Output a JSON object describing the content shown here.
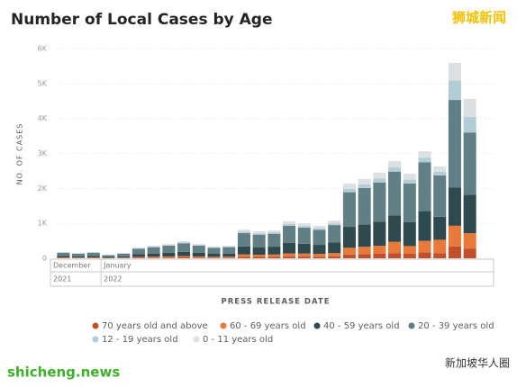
{
  "chart_data": {
    "type": "stacked_bar",
    "title": "Number of Local Cases by Age",
    "y_label": "NO. OF CASES",
    "x_label": "PRESS RELEASE DATE",
    "categories": [
      "December",
      "December",
      "December",
      "January",
      "January",
      "January",
      "January",
      "January",
      "January",
      "January",
      "January",
      "January",
      "January",
      "January",
      "January",
      "January",
      "January",
      "January",
      "January",
      "January",
      "January",
      "January",
      "January",
      "January",
      "January",
      "January",
      "January",
      "January"
    ],
    "x_year": [
      "2021",
      "2021",
      "2021",
      "2022",
      "2022",
      "2022",
      "2022",
      "2022",
      "2022",
      "2022",
      "2022",
      "2022",
      "2022",
      "2022",
      "2022",
      "2022",
      "2022",
      "2022",
      "2022",
      "2022",
      "2022",
      "2022",
      "2022",
      "2022",
      "2022",
      "2022",
      "2022",
      "2022"
    ],
    "series": [
      {
        "name": "70 years old and above",
        "color": "#c0502c",
        "values": [
          10,
          8,
          10,
          5,
          8,
          15,
          18,
          20,
          25,
          20,
          17,
          18,
          40,
          38,
          40,
          50,
          50,
          45,
          55,
          110,
          120,
          130,
          150,
          130,
          170,
          150,
          340,
          280
        ]
      },
      {
        "name": "60 - 69 years old",
        "color": "#e8793a",
        "values": [
          15,
          12,
          15,
          8,
          12,
          25,
          29,
          33,
          39,
          33,
          27,
          29,
          70,
          65,
          68,
          90,
          85,
          80,
          95,
          190,
          210,
          230,
          320,
          220,
          330,
          380,
          590,
          440
        ]
      },
      {
        "name": "40 - 59 years old",
        "color": "#2e4a4f",
        "values": [
          45,
          38,
          45,
          25,
          38,
          78,
          90,
          103,
          122,
          103,
          85,
          90,
          230,
          215,
          225,
          300,
          280,
          260,
          300,
          600,
          640,
          690,
          760,
          680,
          850,
          660,
          1100,
          1100
        ]
      },
      {
        "name": "20 - 39 years old",
        "color": "#617f84",
        "values": [
          90,
          75,
          90,
          50,
          75,
          155,
          180,
          205,
          245,
          205,
          170,
          180,
          380,
          360,
          370,
          490,
          460,
          430,
          500,
          990,
          1040,
          1120,
          1250,
          1110,
          1400,
          1180,
          2500,
          1780
        ]
      },
      {
        "name": "12 - 19 years old",
        "color": "#b3cdd6",
        "values": [
          10,
          7,
          10,
          5,
          7,
          15,
          18,
          20,
          25,
          20,
          17,
          18,
          40,
          37,
          40,
          50,
          50,
          45,
          50,
          100,
          100,
          110,
          120,
          110,
          130,
          110,
          560,
          450
        ]
      },
      {
        "name": "0 - 11 years old",
        "color": "#dde0e3",
        "values": [
          10,
          10,
          10,
          7,
          10,
          22,
          25,
          29,
          34,
          29,
          24,
          25,
          60,
          55,
          57,
          80,
          75,
          70,
          80,
          150,
          160,
          170,
          180,
          170,
          180,
          150,
          500,
          510
        ]
      }
    ],
    "ylim": [
      0,
      6000
    ],
    "yticks": [
      0,
      {
        "value": 1000,
        "label": "1K"
      },
      {
        "value": 2000,
        "label": "2K"
      },
      {
        "value": 3000,
        "label": "3K"
      },
      {
        "value": 4000,
        "label": "4K"
      },
      {
        "value": 5000,
        "label": "5K"
      },
      {
        "value": 6000,
        "label": "6K"
      }
    ],
    "grid": true,
    "legend": "bottom"
  },
  "watermarks": {
    "top_right": "狮城新闻",
    "bottom_left": "shicheng.news",
    "bottom_right": "新加坡华人圈"
  }
}
